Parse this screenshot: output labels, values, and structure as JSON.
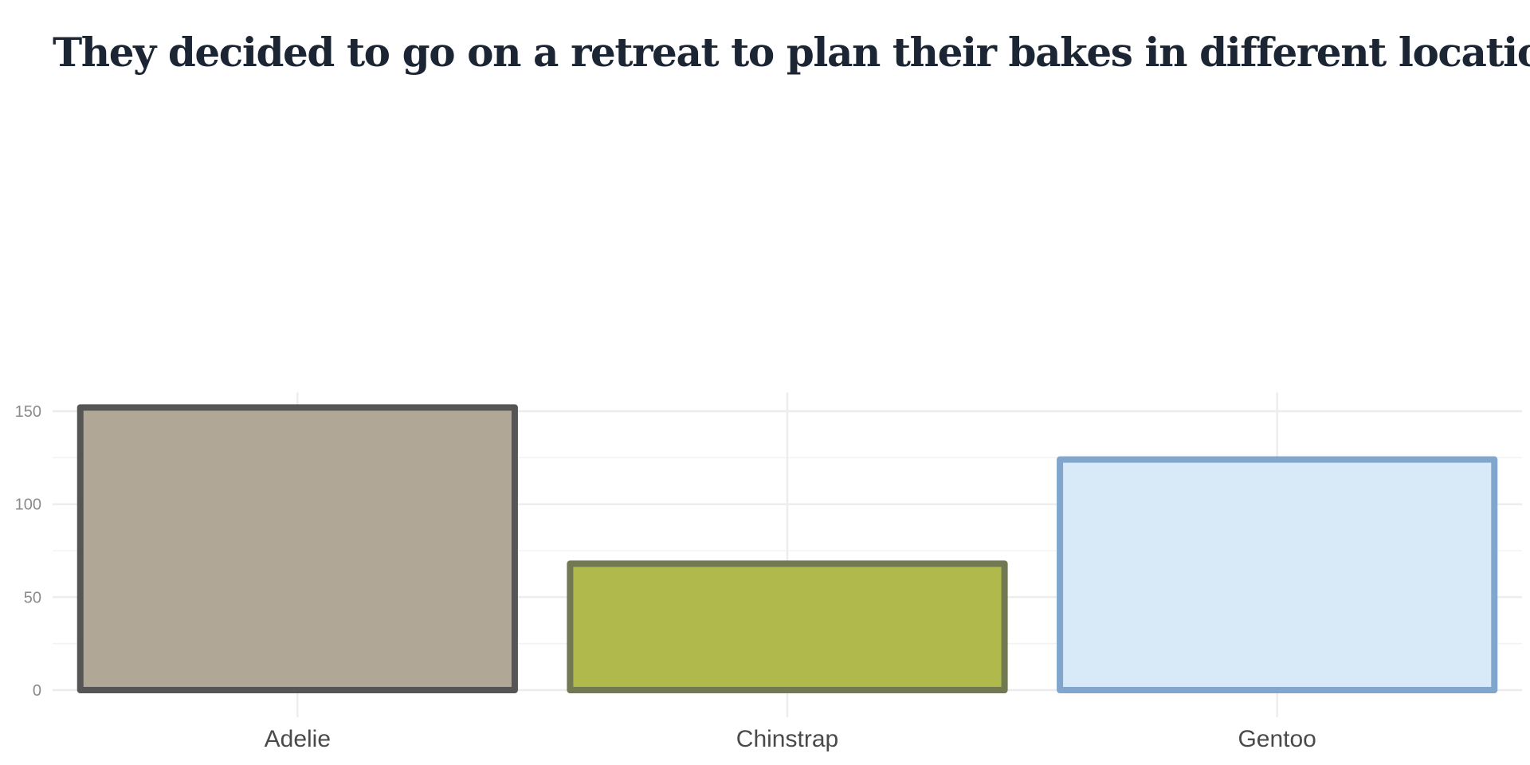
{
  "chart_data": {
    "type": "bar",
    "title": "They decided to go on a retreat to plan their bakes in different locations",
    "xlabel": "",
    "ylabel": "",
    "categories": [
      "Adelie",
      "Chinstrap",
      "Gentoo"
    ],
    "values": [
      152,
      68,
      124
    ],
    "ylim": [
      0,
      160
    ],
    "yticks": [
      0,
      50,
      100,
      150
    ],
    "grid": true,
    "legend": "none",
    "bar_colors": {
      "fill": [
        "#b0a797",
        "#b0b94c",
        "#d8e9f8"
      ],
      "outline": [
        "#555555",
        "#717852",
        "#80a6cd"
      ]
    }
  }
}
